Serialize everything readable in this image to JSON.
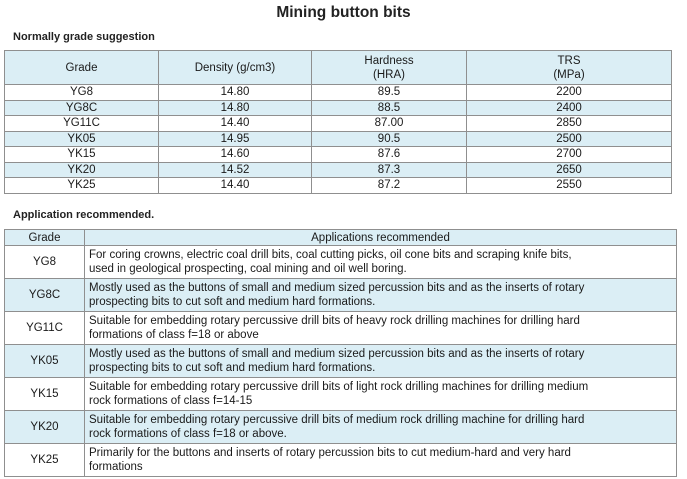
{
  "title": "Mining button bits",
  "section1_label": "Normally grade suggestion",
  "table1": {
    "headers": {
      "grade": "Grade",
      "density": "Density (g/cm3)",
      "hardness_1": "Hardness",
      "hardness_2": "(HRA)",
      "trs_1": "TRS",
      "trs_2": "(MPa)"
    },
    "rows": [
      {
        "grade": "YG8",
        "density": "14.80",
        "hardness": "89.5",
        "trs": "2200"
      },
      {
        "grade": "YG8C",
        "density": "14.80",
        "hardness": "88.5",
        "trs": "2400"
      },
      {
        "grade": "YG11C",
        "density": "14.40",
        "hardness": "87.00",
        "trs": "2850"
      },
      {
        "grade": "YK05",
        "density": "14.95",
        "hardness": "90.5",
        "trs": "2500"
      },
      {
        "grade": "YK15",
        "density": "14.60",
        "hardness": "87.6",
        "trs": "2700"
      },
      {
        "grade": "YK20",
        "density": "14.52",
        "hardness": "87.3",
        "trs": "2650"
      },
      {
        "grade": "YK25",
        "density": "14.40",
        "hardness": "87.2",
        "trs": "2550"
      }
    ]
  },
  "section2_label": "Application recommended.",
  "table2": {
    "headers": {
      "grade": "Grade",
      "applications": "Applications recommended"
    },
    "rows": [
      {
        "grade": "YG8",
        "line1": "For coring crowns, electric coal drill bits, coal cutting picks, oil cone bits and scraping knife bits,",
        "line2": "used in geological prospecting, coal mining and oil well boring."
      },
      {
        "grade": "YG8C",
        "line1": "Mostly used as the buttons of small and medium sized percussion bits and as the inserts of rotary",
        "line2": "prospecting bits to cut soft and medium hard formations."
      },
      {
        "grade": "YG11C",
        "line1": "Suitable for embedding rotary percussive drill bits of heavy rock drilling machines for drilling hard",
        "line2": "formations of class f=18 or above"
      },
      {
        "grade": "YK05",
        "line1": "Mostly used as the buttons of small and medium sized percussion bits and as the inserts of rotary",
        "line2": "prospecting bits to cut soft and medium hard formations."
      },
      {
        "grade": "YK15",
        "line1": "Suitable for embedding rotary percussive drill bits of light rock drilling machines for drilling medium",
        "line2": "rock formations of class f=14-15"
      },
      {
        "grade": "YK20",
        "line1": "Suitable for embedding rotary percussive drill bits of medium rock drilling machine for drilling hard",
        "line2": "rock formations of class f=18 or above."
      },
      {
        "grade": "YK25",
        "line1": "Primarily for the buttons and inserts of rotary percussion bits to cut medium-hard and very hard",
        "line2": "formations"
      }
    ]
  },
  "colors": {
    "header_bg": "#dbeef5",
    "border": "#8f8f8f"
  }
}
